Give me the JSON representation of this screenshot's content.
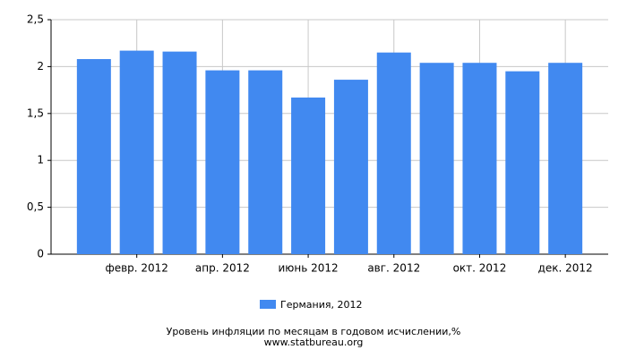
{
  "chart_data": {
    "type": "bar",
    "title": "Уровень инфляции по месяцам в годовом исчислении,%",
    "subtitle": "www.statbureau.org",
    "categories": [
      null,
      "февр. 2012",
      null,
      "апр. 2012",
      null,
      "июнь 2012",
      null,
      "авг. 2012",
      null,
      "окт. 2012",
      null,
      "дек. 2012"
    ],
    "series": [
      {
        "name": "Германия, 2012",
        "color": "#4189f0",
        "values": [
          2.08,
          2.17,
          2.16,
          1.96,
          1.96,
          1.67,
          1.86,
          2.15,
          2.04,
          2.04,
          1.95,
          2.04
        ]
      }
    ],
    "ylim": [
      0,
      2.5
    ],
    "yticks": [
      0,
      {
        "value": 0.5,
        "label": "0,5"
      },
      1,
      {
        "value": 1.5,
        "label": "1,5"
      },
      2,
      {
        "value": 2.5,
        "label": "2,5"
      }
    ],
    "grid": true
  }
}
